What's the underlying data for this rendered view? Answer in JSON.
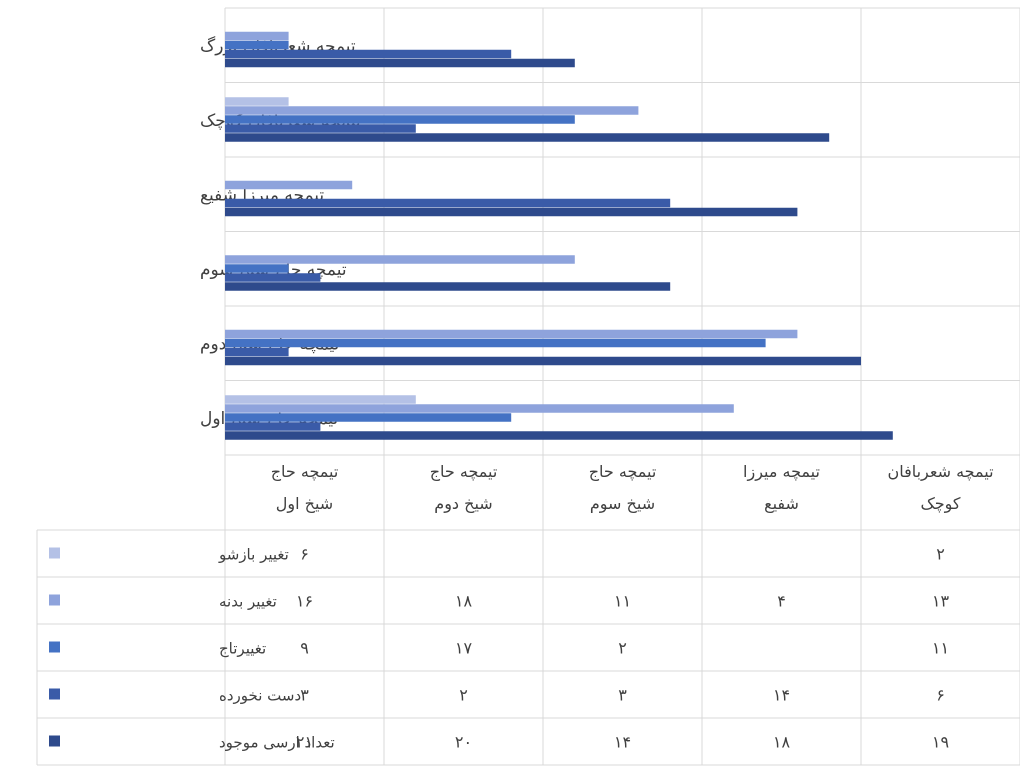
{
  "chart_data": {
    "type": "bar",
    "orientation": "horizontal",
    "categories": [
      "تیمچه حاج شیخ اول",
      "تیمچه حاج شیخ دوم",
      "تیمچه حاج شیخ سوم",
      "تیمچه میرزا شفیع",
      "تیمچه شعربافان کوچک",
      "تیمچه شعربافان بزرگ"
    ],
    "table_headers": [
      [
        "تیمچه حاج",
        "شیخ اول"
      ],
      [
        "تیمچه حاج",
        "شیخ دوم"
      ],
      [
        "تیمچه حاج",
        "شیخ سوم"
      ],
      [
        "تیمچه میرزا",
        "شفیع"
      ],
      [
        "تیمچه شعربافان",
        "کوچک"
      ],
      [
        "تیمچه شعربافان",
        "بزرگ"
      ]
    ],
    "series": [
      {
        "name": "تغییر بازشو",
        "color": "#b4c1e6",
        "values": [
          6,
          null,
          null,
          null,
          2,
          null
        ],
        "labels": [
          "۶",
          "",
          "",
          "",
          "۲",
          ""
        ]
      },
      {
        "name": "تغییر بدنه",
        "color": "#8ea3dc",
        "values": [
          16,
          18,
          11,
          4,
          13,
          2
        ],
        "labels": [
          "۱۶",
          "۱۸",
          "۱۱",
          "۴",
          "۱۳",
          "۲"
        ]
      },
      {
        "name": "تغییرتاج",
        "color": "#4472c4",
        "values": [
          9,
          17,
          2,
          null,
          11,
          2
        ],
        "labels": [
          "۹",
          "۱۷",
          "۲",
          "",
          "۱۱",
          "۲"
        ]
      },
      {
        "name": "دست نخورده",
        "color": "#3a5ba8",
        "values": [
          3,
          2,
          3,
          14,
          6,
          9
        ],
        "labels": [
          "۳",
          "۲",
          "۳",
          "۱۴",
          "۶",
          "۹"
        ]
      },
      {
        "name": "تعداد ارسی موجود",
        "color": "#2e4a8c",
        "values": [
          21,
          20,
          14,
          18,
          19,
          11
        ],
        "labels": [
          "۲۱",
          "۲۰",
          "۱۴",
          "۱۸",
          "۱۹",
          "۱۱"
        ]
      }
    ],
    "xlim": [
      0,
      25
    ],
    "grid": true,
    "legend": "data-table"
  }
}
